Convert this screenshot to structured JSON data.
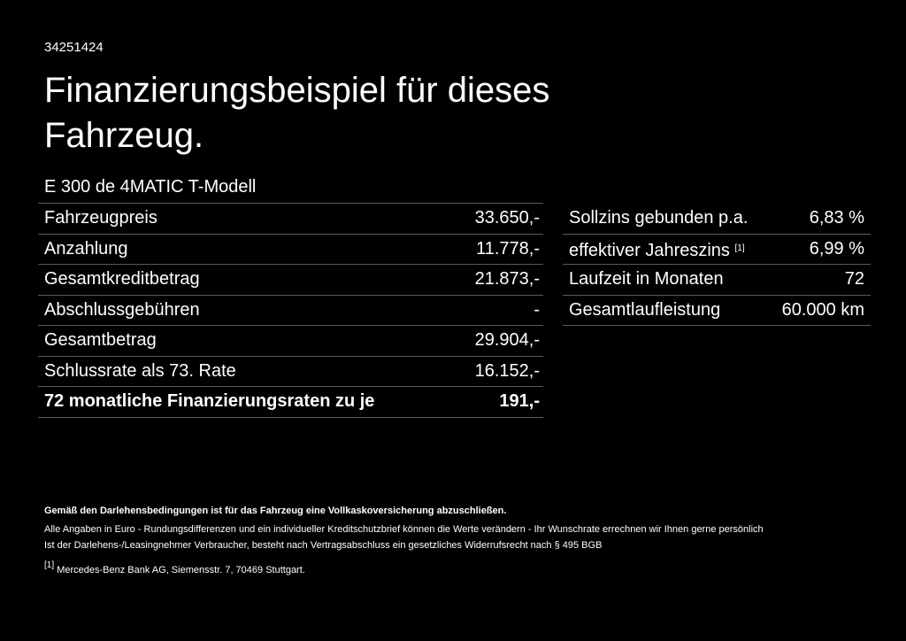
{
  "header": {
    "id": "34251424",
    "title_line1": "Finanzierungsbeispiel für dieses",
    "title_line2": "Fahrzeug.",
    "model": "E 300 de 4MATIC T-Modell"
  },
  "left_table": {
    "rows": [
      [
        "Fahrzeugpreis",
        "33.650,-"
      ],
      [
        "Anzahlung",
        "11.778,-"
      ],
      [
        "Gesamtkreditbetrag",
        "21.873,-"
      ],
      [
        "Abschlussgebühren",
        "-"
      ],
      [
        "Gesamtbetrag",
        "29.904,-"
      ],
      [
        "Schlussrate als 73. Rate",
        "16.152,-"
      ],
      [
        "72 monatliche Finanzierungsraten zu je",
        "191,-"
      ]
    ]
  },
  "right_table": {
    "rows": [
      [
        "Sollzins gebunden p.a.",
        "6,83 %"
      ],
      [
        "effektiver Jahreszins",
        "6,99 %"
      ],
      [
        "Laufzeit in Monaten",
        "72"
      ],
      [
        "Gesamtlaufleistung",
        "60.000 km"
      ]
    ],
    "note_mark": "[1]"
  },
  "footer": {
    "bold_note": "Gemäß den Darlehensbedingungen ist für das Fahrzeug eine Vollkaskoversicherung abzuschließen.",
    "line1": "Alle Angaben in Euro - Rundungsdifferenzen und ein individueller Kreditschutzbrief können die Werte verändern - Ihr Wunschrate errechnen wir Ihnen gerne persönlich",
    "line2": "Ist der Darlehens-/Leasingnehmer Verbraucher, besteht nach Vertragsabschluss ein gesetzliches Widerrufsrecht nach § 495 BGB",
    "footnote_mark": "[1]",
    "footnote": "Mercedes-Benz Bank AG, Siemensstr. 7, 70469 Stuttgart."
  }
}
